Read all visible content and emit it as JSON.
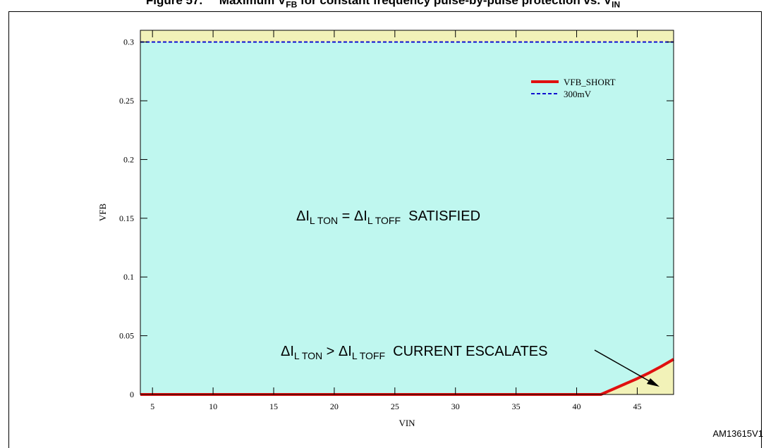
{
  "figure": {
    "title_prefix": "Figure 57.",
    "title_rest": "Maximum V",
    "title_sub1": "FB",
    "title_mid": "for constant frequency pulse-by-pulse protection vs. V",
    "title_sub2": "IN",
    "code": "AM13615V1"
  },
  "colors": {
    "satisfied_region": "#bff7ef",
    "escalate_region": "#f2f2b8",
    "short_line": "#e01010",
    "ref_line": "#1010d0"
  },
  "chart_data": {
    "type": "line",
    "xlabel": "VIN",
    "ylabel": "VFB",
    "xlim": [
      4,
      48
    ],
    "ylim": [
      0,
      0.31
    ],
    "x_ticks": [
      5,
      10,
      15,
      20,
      25,
      30,
      35,
      40,
      45
    ],
    "y_ticks": [
      0,
      0.05,
      0.1,
      0.15,
      0.2,
      0.25,
      0.3
    ],
    "y_tick_labels": [
      "0",
      "0.05",
      "0.1",
      "0.15",
      "0.2",
      "0.25",
      "0.3"
    ],
    "series": [
      {
        "name": "VFB_SHORT",
        "style": "solid",
        "x": [
          4,
          42,
          43,
          44,
          45,
          46,
          47,
          48
        ],
        "y": [
          0,
          0,
          0.0045,
          0.009,
          0.0135,
          0.0185,
          0.024,
          0.03
        ]
      },
      {
        "name": "300mV",
        "style": "dashed",
        "x": [
          4,
          48
        ],
        "y": [
          0.3,
          0.3
        ]
      }
    ],
    "legend_position": "top-right",
    "annotations": {
      "satisfied": {
        "delta": "ΔI",
        "sub1": "L TON",
        "eq": " = ΔI",
        "sub2": "L TOFF",
        "text": "  SATISFIED"
      },
      "escalates": {
        "delta": "ΔI",
        "sub1": "L TON",
        "gt": " > ΔI",
        "sub2": "L TOFF",
        "text": "  CURRENT ESCALATES"
      }
    }
  }
}
